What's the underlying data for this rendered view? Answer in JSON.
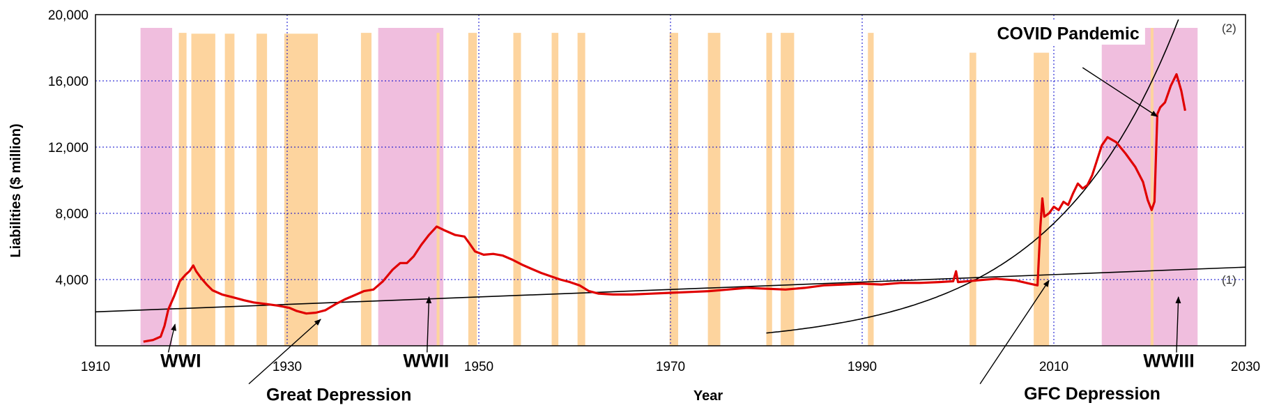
{
  "chart_data": {
    "type": "line",
    "title": "",
    "xlabel": "Year",
    "ylabel": "Liabilities ($ million)",
    "xlim": [
      1910,
      2030
    ],
    "ylim": [
      0,
      20000
    ],
    "x_ticks": [
      "1910",
      "1930",
      "1950",
      "1970",
      "1990",
      "2010",
      "2030"
    ],
    "y_ticks": [
      "4,000",
      "8,000",
      "12,000",
      "16,000",
      "20,000"
    ],
    "grid": true,
    "colors": {
      "series": "#e00000",
      "fit": "#000000",
      "recession_band": "#fdd49e",
      "war_band": "#f0bede",
      "grid": "#0000cc"
    },
    "war_periods": [
      {
        "start": 1914.7,
        "end": 1918.0
      },
      {
        "start": 1939.5,
        "end": 1946.3
      },
      {
        "start": 2015.0,
        "end": 2025.0
      }
    ],
    "recession_periods": [
      {
        "start": 1918.7,
        "end": 1919.5,
        "top": 18900
      },
      {
        "start": 1920.0,
        "end": 1922.5,
        "top": 18850
      },
      {
        "start": 1923.5,
        "end": 1924.5,
        "top": 18850
      },
      {
        "start": 1926.8,
        "end": 1927.9,
        "top": 18850
      },
      {
        "start": 1929.7,
        "end": 1933.2,
        "top": 18850
      },
      {
        "start": 1937.7,
        "end": 1938.8,
        "top": 18900
      },
      {
        "start": 1945.6,
        "end": 1945.9,
        "top": 18900
      },
      {
        "start": 1948.9,
        "end": 1949.8,
        "top": 18900
      },
      {
        "start": 1953.6,
        "end": 1954.4,
        "top": 18900
      },
      {
        "start": 1957.6,
        "end": 1958.3,
        "top": 18900
      },
      {
        "start": 1960.3,
        "end": 1961.1,
        "top": 18900
      },
      {
        "start": 1969.9,
        "end": 1970.8,
        "top": 18900
      },
      {
        "start": 1973.9,
        "end": 1975.2,
        "top": 18900
      },
      {
        "start": 1980.0,
        "end": 1980.6,
        "top": 18900
      },
      {
        "start": 1981.5,
        "end": 1982.9,
        "top": 18900
      },
      {
        "start": 1990.6,
        "end": 1991.2,
        "top": 18900
      },
      {
        "start": 2001.2,
        "end": 2001.9,
        "top": 17700
      },
      {
        "start": 2007.9,
        "end": 2009.5,
        "top": 17700
      },
      {
        "start": 2020.1,
        "end": 2020.4,
        "top": 19200
      }
    ],
    "series": [
      {
        "values": [
          [
            1915.0,
            250
          ],
          [
            1916.0,
            350
          ],
          [
            1916.8,
            550
          ],
          [
            1917.2,
            1200
          ],
          [
            1917.6,
            2200
          ],
          [
            1918.2,
            3000
          ],
          [
            1918.8,
            3900
          ],
          [
            1919.4,
            4300
          ],
          [
            1919.8,
            4500
          ],
          [
            1920.2,
            4850
          ],
          [
            1920.5,
            4500
          ],
          [
            1921.0,
            4100
          ],
          [
            1921.6,
            3700
          ],
          [
            1922.2,
            3350
          ],
          [
            1923.2,
            3100
          ],
          [
            1924.2,
            2950
          ],
          [
            1925.5,
            2750
          ],
          [
            1926.5,
            2620
          ],
          [
            1927.8,
            2520
          ],
          [
            1929.0,
            2430
          ],
          [
            1930.2,
            2300
          ],
          [
            1931.0,
            2100
          ],
          [
            1932.0,
            1950
          ],
          [
            1933.0,
            2000
          ],
          [
            1934.0,
            2150
          ],
          [
            1935.0,
            2500
          ],
          [
            1936.0,
            2800
          ],
          [
            1937.0,
            3050
          ],
          [
            1938.0,
            3300
          ],
          [
            1939.0,
            3400
          ],
          [
            1940.0,
            3900
          ],
          [
            1941.0,
            4600
          ],
          [
            1941.8,
            5000
          ],
          [
            1942.5,
            5000
          ],
          [
            1943.2,
            5400
          ],
          [
            1944.0,
            6100
          ],
          [
            1944.8,
            6700
          ],
          [
            1945.6,
            7200
          ],
          [
            1946.5,
            6950
          ],
          [
            1947.5,
            6700
          ],
          [
            1948.5,
            6600
          ],
          [
            1949.0,
            6200
          ],
          [
            1949.6,
            5700
          ],
          [
            1950.5,
            5500
          ],
          [
            1951.5,
            5550
          ],
          [
            1952.5,
            5450
          ],
          [
            1953.5,
            5200
          ],
          [
            1954.5,
            4900
          ],
          [
            1955.5,
            4650
          ],
          [
            1956.5,
            4400
          ],
          [
            1957.5,
            4200
          ],
          [
            1958.5,
            4000
          ],
          [
            1959.5,
            3850
          ],
          [
            1960.5,
            3650
          ],
          [
            1961.5,
            3300
          ],
          [
            1962.5,
            3150
          ],
          [
            1964.0,
            3100
          ],
          [
            1966.0,
            3100
          ],
          [
            1968.0,
            3150
          ],
          [
            1970.0,
            3200
          ],
          [
            1972.0,
            3250
          ],
          [
            1974.0,
            3300
          ],
          [
            1976.0,
            3400
          ],
          [
            1978.0,
            3500
          ],
          [
            1980.0,
            3450
          ],
          [
            1982.0,
            3400
          ],
          [
            1984.0,
            3500
          ],
          [
            1986.0,
            3650
          ],
          [
            1988.0,
            3700
          ],
          [
            1990.0,
            3750
          ],
          [
            1992.0,
            3700
          ],
          [
            1994.0,
            3800
          ],
          [
            1996.0,
            3800
          ],
          [
            1998.0,
            3850
          ],
          [
            1999.5,
            3900
          ],
          [
            1999.8,
            4500
          ],
          [
            2000.0,
            3850
          ],
          [
            2002.0,
            3950
          ],
          [
            2004.0,
            4050
          ],
          [
            2006.0,
            3950
          ],
          [
            2007.5,
            3750
          ],
          [
            2008.3,
            3650
          ],
          [
            2008.6,
            7200
          ],
          [
            2008.8,
            8900
          ],
          [
            2009.0,
            7800
          ],
          [
            2009.5,
            8000
          ],
          [
            2010.0,
            8400
          ],
          [
            2010.5,
            8200
          ],
          [
            2011.0,
            8700
          ],
          [
            2011.5,
            8500
          ],
          [
            2012.0,
            9200
          ],
          [
            2012.5,
            9800
          ],
          [
            2013.0,
            9500
          ],
          [
            2013.5,
            9700
          ],
          [
            2014.0,
            10300
          ],
          [
            2014.5,
            11200
          ],
          [
            2015.0,
            12100
          ],
          [
            2015.6,
            12600
          ],
          [
            2016.5,
            12300
          ],
          [
            2017.5,
            11600
          ],
          [
            2018.5,
            10800
          ],
          [
            2019.3,
            9900
          ],
          [
            2019.8,
            8800
          ],
          [
            2020.2,
            8200
          ],
          [
            2020.5,
            8700
          ],
          [
            2020.8,
            14000
          ],
          [
            2021.1,
            14400
          ],
          [
            2021.6,
            14700
          ],
          [
            2022.2,
            15700
          ],
          [
            2022.8,
            16400
          ],
          [
            2023.3,
            15400
          ],
          [
            2023.7,
            14200
          ]
        ]
      }
    ],
    "fits": [
      {
        "label": "(1)",
        "kind": "linear",
        "x_start": 1910,
        "y_start": 2050,
        "x_end": 2030,
        "y_end": 4750
      },
      {
        "label": "(2)",
        "kind": "exponential",
        "x_ref": 2010,
        "y_ref": 7400,
        "doubling_years": 9.2,
        "x_min": 1980
      }
    ],
    "annotations": [
      {
        "text": "WWI",
        "x": 1918.9,
        "y": -1280,
        "size": 27,
        "arrow_from": [
          1917.6,
          -400
        ],
        "arrow_to": [
          1918.3,
          1300
        ]
      },
      {
        "text": "Great Depression",
        "x": 1935.4,
        "y": -3300,
        "size": 25,
        "arrow_from": [
          1926.0,
          -2300
        ],
        "arrow_to": [
          1933.5,
          1600
        ]
      },
      {
        "text": "WWII",
        "x": 1944.5,
        "y": -1280,
        "size": 27,
        "arrow_from": [
          1944.6,
          -400
        ],
        "arrow_to": [
          1944.8,
          2950
        ]
      },
      {
        "text": "GFC Depression",
        "x": 2014.0,
        "y": -3250,
        "size": 25,
        "arrow_from": [
          2002.3,
          -2300
        ],
        "arrow_to": [
          2009.5,
          3950
        ]
      },
      {
        "text": "WWIII",
        "x": 2022.0,
        "y": -1280,
        "size": 27,
        "arrow_from": [
          2022.8,
          -400
        ],
        "arrow_to": [
          2023.0,
          2950
        ]
      },
      {
        "text": "COVID Pandemic",
        "x": 2011.5,
        "y": 18500,
        "size": 25,
        "arrow_from": [
          2013.0,
          16800
        ],
        "arrow_to": [
          2020.8,
          13850
        ],
        "box": true
      }
    ]
  }
}
